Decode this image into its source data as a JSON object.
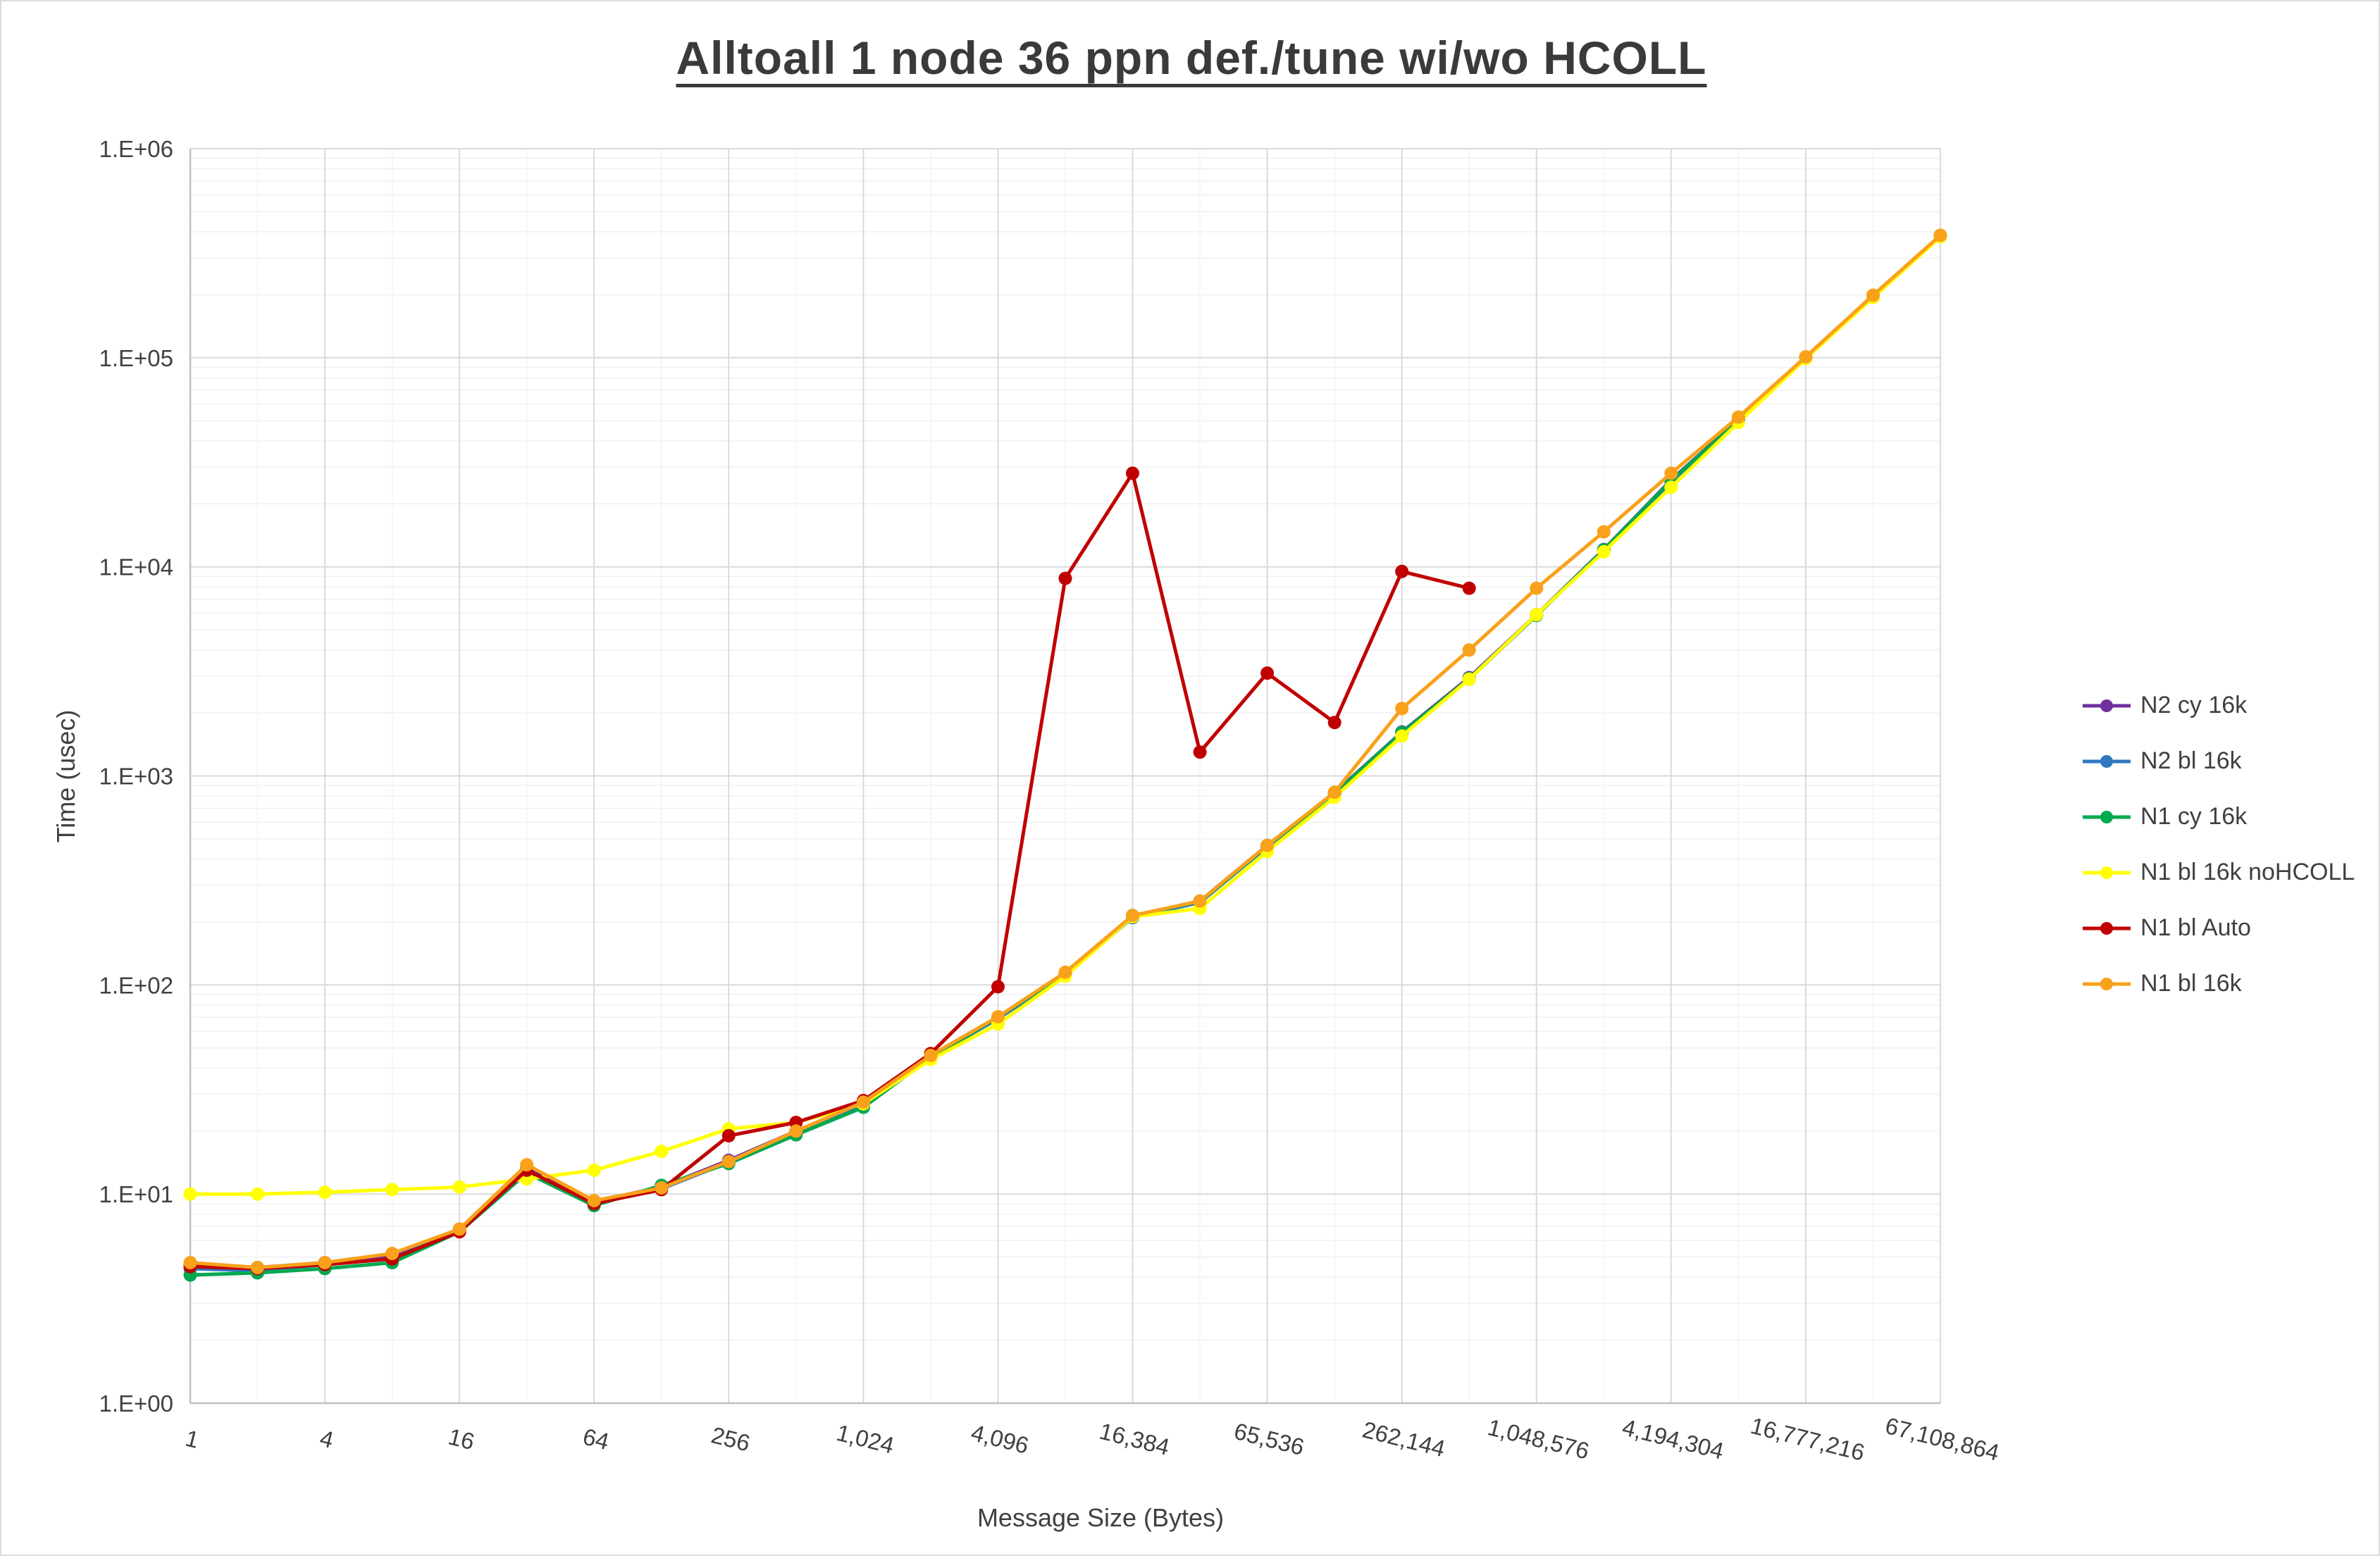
{
  "title": "Alltoall 1 node 36 ppn def./tune wi/wo HCOLL",
  "chart_data": {
    "type": "line",
    "x_scale": "log2",
    "y_scale": "log10",
    "xlabel": "Message Size (Bytes)",
    "ylabel": "Time (usec)",
    "ylim": [
      1,
      1000000
    ],
    "grid": "on",
    "legend_position": "right",
    "y_tick_labels": [
      "1.E+00",
      "1.E+01",
      "1.E+02",
      "1.E+03",
      "1.E+04",
      "1.E+05",
      "1.E+06"
    ],
    "x_sizes": [
      1,
      2,
      4,
      8,
      16,
      32,
      64,
      128,
      256,
      512,
      1024,
      2048,
      4096,
      8192,
      16384,
      32768,
      65536,
      131072,
      262144,
      524288,
      1048576,
      2097152,
      4194304,
      8388608,
      16777216,
      33554432,
      67108864
    ],
    "x_tick_labels": [
      "1",
      "4",
      "16",
      "64",
      "256",
      "1,024",
      "4,096",
      "16,384",
      "65,536",
      "262,144",
      "1,048,576",
      "4,194,304",
      "16,777,216",
      "67,108,864"
    ],
    "x_label_every": 2,
    "series": [
      {
        "name": "N2 cy 16k",
        "color": "#7030a0",
        "values": [
          4.6,
          4.45,
          4.7,
          5.0,
          6.8,
          13.2,
          9.2,
          10.8,
          14.5,
          20.0,
          27.0,
          46.0,
          70.0,
          114,
          214,
          252,
          465,
          830,
          1620,
          2950,
          5900,
          12100,
          26000,
          50500,
          100500,
          196000,
          381000
        ]
      },
      {
        "name": "N2 bl 16k",
        "color": "#2e79c0",
        "values": [
          4.4,
          4.3,
          4.6,
          4.9,
          6.7,
          13.0,
          9.0,
          10.6,
          14.2,
          19.6,
          26.5,
          45.0,
          69.0,
          112,
          210,
          248,
          458,
          820,
          1600,
          2900,
          5850,
          12000,
          25500,
          50000,
          100000,
          195000,
          379000
        ]
      },
      {
        "name": "N1 cy 16k",
        "color": "#00a84f",
        "values": [
          4.1,
          4.2,
          4.4,
          4.7,
          6.6,
          12.6,
          8.8,
          11.0,
          14.0,
          19.2,
          26.0,
          45.0,
          70.0,
          113,
          215,
          250,
          460,
          825,
          1610,
          2920,
          5870,
          12050,
          25800,
          50200,
          100200,
          195500,
          380000
        ]
      },
      {
        "name": "N1 bl 16k noHCOLL",
        "color": "#ffff00",
        "values": [
          10.0,
          10.0,
          10.2,
          10.5,
          10.8,
          11.8,
          13.0,
          16.0,
          20.5,
          22.0,
          27.0,
          44.0,
          65.0,
          110,
          212,
          232,
          435,
          790,
          1550,
          2900,
          5900,
          11800,
          24000,
          49000,
          99000,
          194000,
          378000
        ]
      },
      {
        "name": "N1 bl Auto",
        "color": "#c00000",
        "values": [
          4.5,
          4.4,
          4.6,
          4.9,
          6.6,
          13.0,
          9.0,
          10.5,
          19.0,
          22.0,
          28.0,
          47.0,
          98.0,
          8800,
          28000,
          1300,
          3100,
          1800,
          9500,
          7900
        ]
      },
      {
        "name": "N1 bl 16k",
        "color": "#f9a11b",
        "values": [
          4.7,
          4.45,
          4.7,
          5.2,
          6.8,
          13.8,
          9.3,
          10.7,
          14.3,
          20.0,
          27.5,
          46.0,
          70.5,
          115,
          215,
          252,
          465,
          835,
          2100,
          4000,
          7900,
          14700,
          28000,
          52000,
          101000,
          199000,
          385000
        ]
      }
    ]
  }
}
